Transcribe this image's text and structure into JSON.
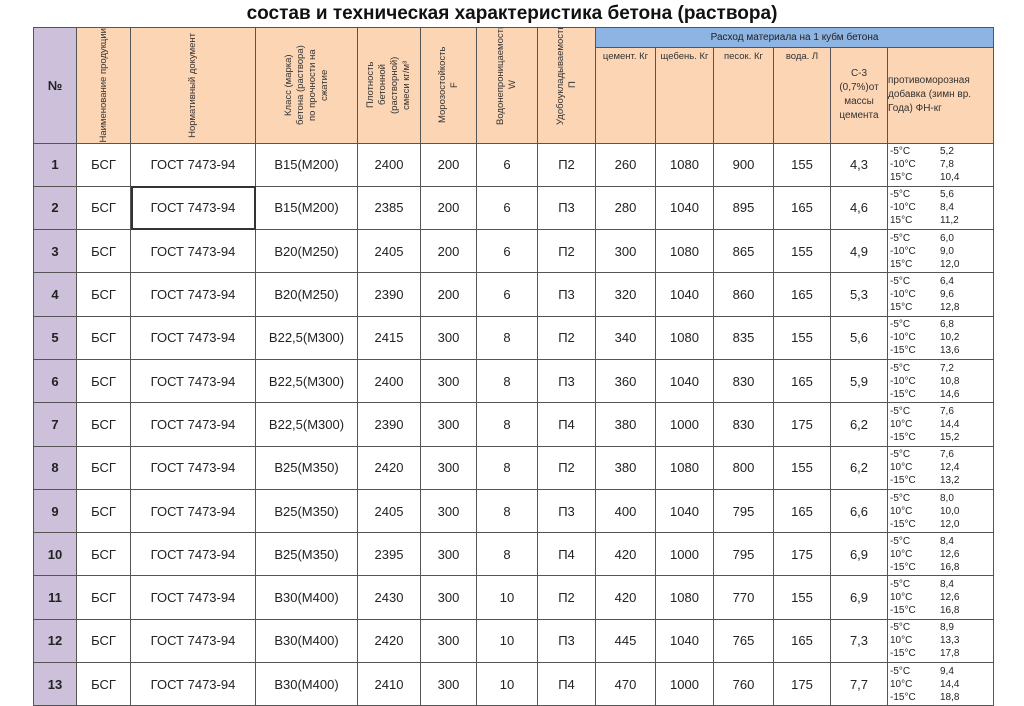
{
  "title": "состав и техническая характеристика бетона (раствора)",
  "headers": {
    "no": "№",
    "name": "Наименование продукции",
    "doc": "Нормативный документ",
    "class": "Класс (марка) бетона (раствора) по прочности на сжатие",
    "density": "Плотность бетонной (растворной) смеси кг/м³",
    "frost": "Морозостойкость F",
    "water_perm": "Водонепроницаемость W",
    "workability": "Удобоукладываемость П",
    "group": "Расход материала на 1 кубм бетона",
    "cement": "цемент. Кг",
    "gravel": "щебень. Кг",
    "sand": "песок. Кг",
    "water": "вода. Л",
    "c3": "С-3 (0,7%)от массы цемента",
    "additive": "противоморозная добавка (зимн вр. Года) ФН-кг"
  },
  "rows": [
    {
      "no": "1",
      "name": "БСГ",
      "doc": "ГОСТ 7473-94",
      "class": "B15(M200)",
      "density": "2400",
      "frost": "200",
      "w": "6",
      "p": "П2",
      "cement": "260",
      "gravel": "1080",
      "sand": "900",
      "water": "155",
      "c3": "4,3",
      "add": [
        [
          "-5°C",
          "5,2"
        ],
        [
          "-10°C",
          "7,8"
        ],
        [
          "15°C",
          "10,4"
        ]
      ]
    },
    {
      "no": "2",
      "name": "БСГ",
      "doc": "ГОСТ 7473-94",
      "class": "B15(M200)",
      "density": "2385",
      "frost": "200",
      "w": "6",
      "p": "П3",
      "cement": "280",
      "gravel": "1040",
      "sand": "895",
      "water": "165",
      "c3": "4,6",
      "add": [
        [
          "-5°C",
          "5,6"
        ],
        [
          "-10°C",
          "8,4"
        ],
        [
          "15°C",
          "11,2"
        ]
      ]
    },
    {
      "no": "3",
      "name": "БСГ",
      "doc": "ГОСТ 7473-94",
      "class": "B20(M250)",
      "density": "2405",
      "frost": "200",
      "w": "6",
      "p": "П2",
      "cement": "300",
      "gravel": "1080",
      "sand": "865",
      "water": "155",
      "c3": "4,9",
      "add": [
        [
          "-5°C",
          "6,0"
        ],
        [
          "-10°C",
          "9,0"
        ],
        [
          "15°C",
          "12,0"
        ]
      ]
    },
    {
      "no": "4",
      "name": "БСГ",
      "doc": "ГОСТ 7473-94",
      "class": "B20(M250)",
      "density": "2390",
      "frost": "200",
      "w": "6",
      "p": "П3",
      "cement": "320",
      "gravel": "1040",
      "sand": "860",
      "water": "165",
      "c3": "5,3",
      "add": [
        [
          "-5°C",
          "6,4"
        ],
        [
          "-10°C",
          "9,6"
        ],
        [
          "15°C",
          "12,8"
        ]
      ]
    },
    {
      "no": "5",
      "name": "БСГ",
      "doc": "ГОСТ 7473-94",
      "class": "B22,5(M300)",
      "density": "2415",
      "frost": "300",
      "w": "8",
      "p": "П2",
      "cement": "340",
      "gravel": "1080",
      "sand": "835",
      "water": "155",
      "c3": "5,6",
      "add": [
        [
          "-5°C",
          "6,8"
        ],
        [
          "-10°C",
          "10,2"
        ],
        [
          "-15°C",
          "13,6"
        ]
      ]
    },
    {
      "no": "6",
      "name": "БСГ",
      "doc": "ГОСТ 7473-94",
      "class": "B22,5(M300)",
      "density": "2400",
      "frost": "300",
      "w": "8",
      "p": "П3",
      "cement": "360",
      "gravel": "1040",
      "sand": "830",
      "water": "165",
      "c3": "5,9",
      "add": [
        [
          "-5°C",
          "7,2"
        ],
        [
          "-10°C",
          "10,8"
        ],
        [
          "-15°C",
          "14,6"
        ]
      ]
    },
    {
      "no": "7",
      "name": "БСГ",
      "doc": "ГОСТ 7473-94",
      "class": "B22,5(M300)",
      "density": "2390",
      "frost": "300",
      "w": "8",
      "p": "П4",
      "cement": "380",
      "gravel": "1000",
      "sand": "830",
      "water": "175",
      "c3": "6,2",
      "add": [
        [
          "-5°C",
          "7,6"
        ],
        [
          "10°C",
          "14,4"
        ],
        [
          "-15°C",
          "15,2"
        ]
      ]
    },
    {
      "no": "8",
      "name": "БСГ",
      "doc": "ГОСТ 7473-94",
      "class": "B25(M350)",
      "density": "2420",
      "frost": "300",
      "w": "8",
      "p": "П2",
      "cement": "380",
      "gravel": "1080",
      "sand": "800",
      "water": "155",
      "c3": "6,2",
      "add": [
        [
          "-5°C",
          "7,6"
        ],
        [
          "10°C",
          "12,4"
        ],
        [
          "-15°C",
          "13,2"
        ]
      ]
    },
    {
      "no": "9",
      "name": "БСГ",
      "doc": "ГОСТ 7473-94",
      "class": "B25(M350)",
      "density": "2405",
      "frost": "300",
      "w": "8",
      "p": "П3",
      "cement": "400",
      "gravel": "1040",
      "sand": "795",
      "water": "165",
      "c3": "6,6",
      "add": [
        [
          "-5°C",
          "8,0"
        ],
        [
          "10°C",
          "10,0"
        ],
        [
          "-15°C",
          "12,0"
        ]
      ]
    },
    {
      "no": "10",
      "name": "БСГ",
      "doc": "ГОСТ 7473-94",
      "class": "B25(M350)",
      "density": "2395",
      "frost": "300",
      "w": "8",
      "p": "П4",
      "cement": "420",
      "gravel": "1000",
      "sand": "795",
      "water": "175",
      "c3": "6,9",
      "add": [
        [
          "-5°C",
          "8,4"
        ],
        [
          "10°C",
          "12,6"
        ],
        [
          "-15°C",
          "16,8"
        ]
      ]
    },
    {
      "no": "11",
      "name": "БСГ",
      "doc": "ГОСТ 7473-94",
      "class": "B30(M400)",
      "density": "2430",
      "frost": "300",
      "w": "10",
      "p": "П2",
      "cement": "420",
      "gravel": "1080",
      "sand": "770",
      "water": "155",
      "c3": "6,9",
      "add": [
        [
          "-5°C",
          "8,4"
        ],
        [
          "10°C",
          "12,6"
        ],
        [
          "-15°C",
          "16,8"
        ]
      ]
    },
    {
      "no": "12",
      "name": "БСГ",
      "doc": "ГОСТ 7473-94",
      "class": "B30(M400)",
      "density": "2420",
      "frost": "300",
      "w": "10",
      "p": "П3",
      "cement": "445",
      "gravel": "1040",
      "sand": "765",
      "water": "165",
      "c3": "7,3",
      "add": [
        [
          "-5°C",
          "8,9"
        ],
        [
          "10°C",
          "13,3"
        ],
        [
          "-15°C",
          "17,8"
        ]
      ]
    },
    {
      "no": "13",
      "name": "БСГ",
      "doc": "ГОСТ 7473-94",
      "class": "B30(M400)",
      "density": "2410",
      "frost": "300",
      "w": "10",
      "p": "П4",
      "cement": "470",
      "gravel": "1000",
      "sand": "760",
      "water": "175",
      "c3": "7,7",
      "add": [
        [
          "-5°C",
          "9,4"
        ],
        [
          "10°C",
          "14,4"
        ],
        [
          "-15°C",
          "18,8"
        ]
      ]
    }
  ]
}
